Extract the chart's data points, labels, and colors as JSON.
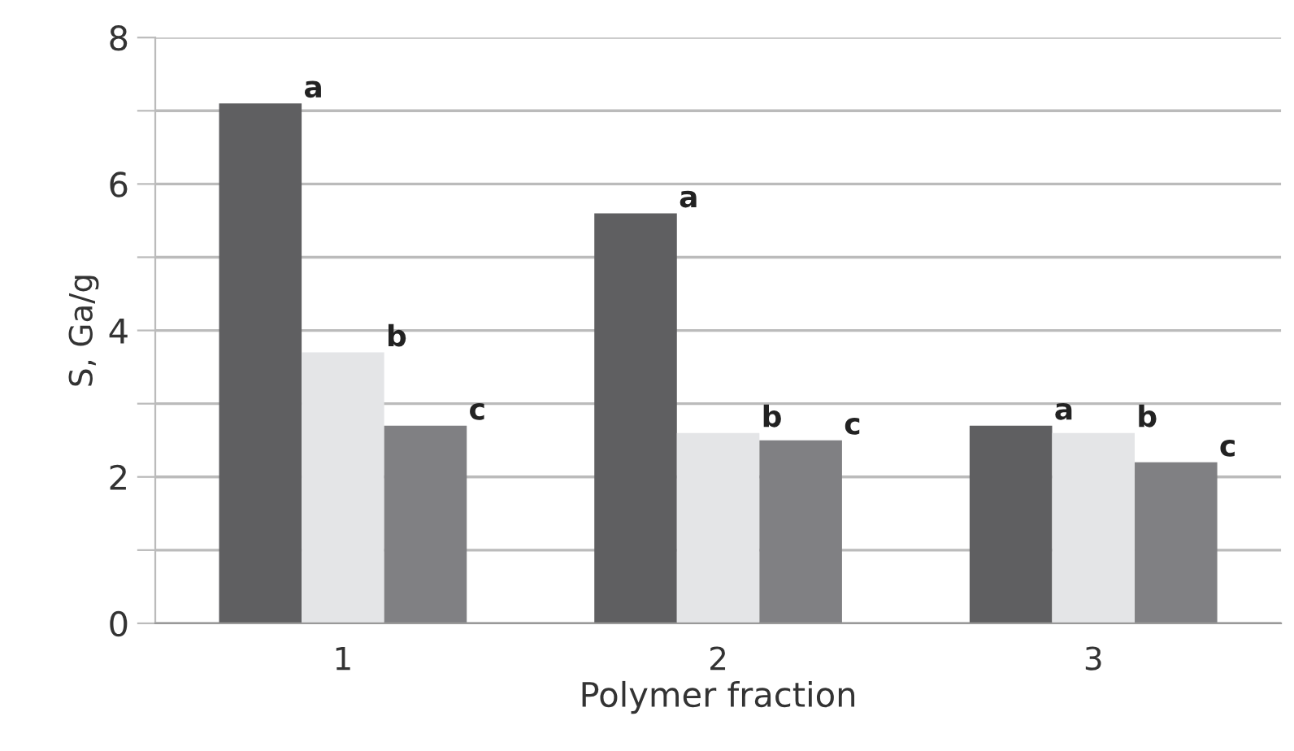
{
  "chart_data": {
    "type": "bar",
    "xlabel": "Polymer fraction",
    "ylabel": "S, Ga/g",
    "categories": [
      "1",
      "2",
      "3"
    ],
    "series": [
      {
        "color": "#5f5f61",
        "values": [
          7.1,
          5.6,
          2.7
        ]
      },
      {
        "color": "#e4e5e7",
        "values": [
          3.7,
          2.6,
          2.6
        ]
      },
      {
        "color": "#808083",
        "values": [
          2.7,
          2.5,
          2.2
        ]
      }
    ],
    "ylim": [
      0,
      8
    ],
    "yticks": [
      0,
      {
        "value": 1,
        "label": null
      },
      2,
      {
        "value": 3,
        "label": null
      },
      4,
      {
        "value": 5,
        "label": null
      },
      6,
      {
        "value": 7,
        "label": null
      },
      8
    ],
    "grid": "y",
    "legend": false,
    "annotations": [
      "a",
      "b",
      "c",
      "a",
      "b",
      "c",
      "a",
      "b",
      "c"
    ]
  }
}
